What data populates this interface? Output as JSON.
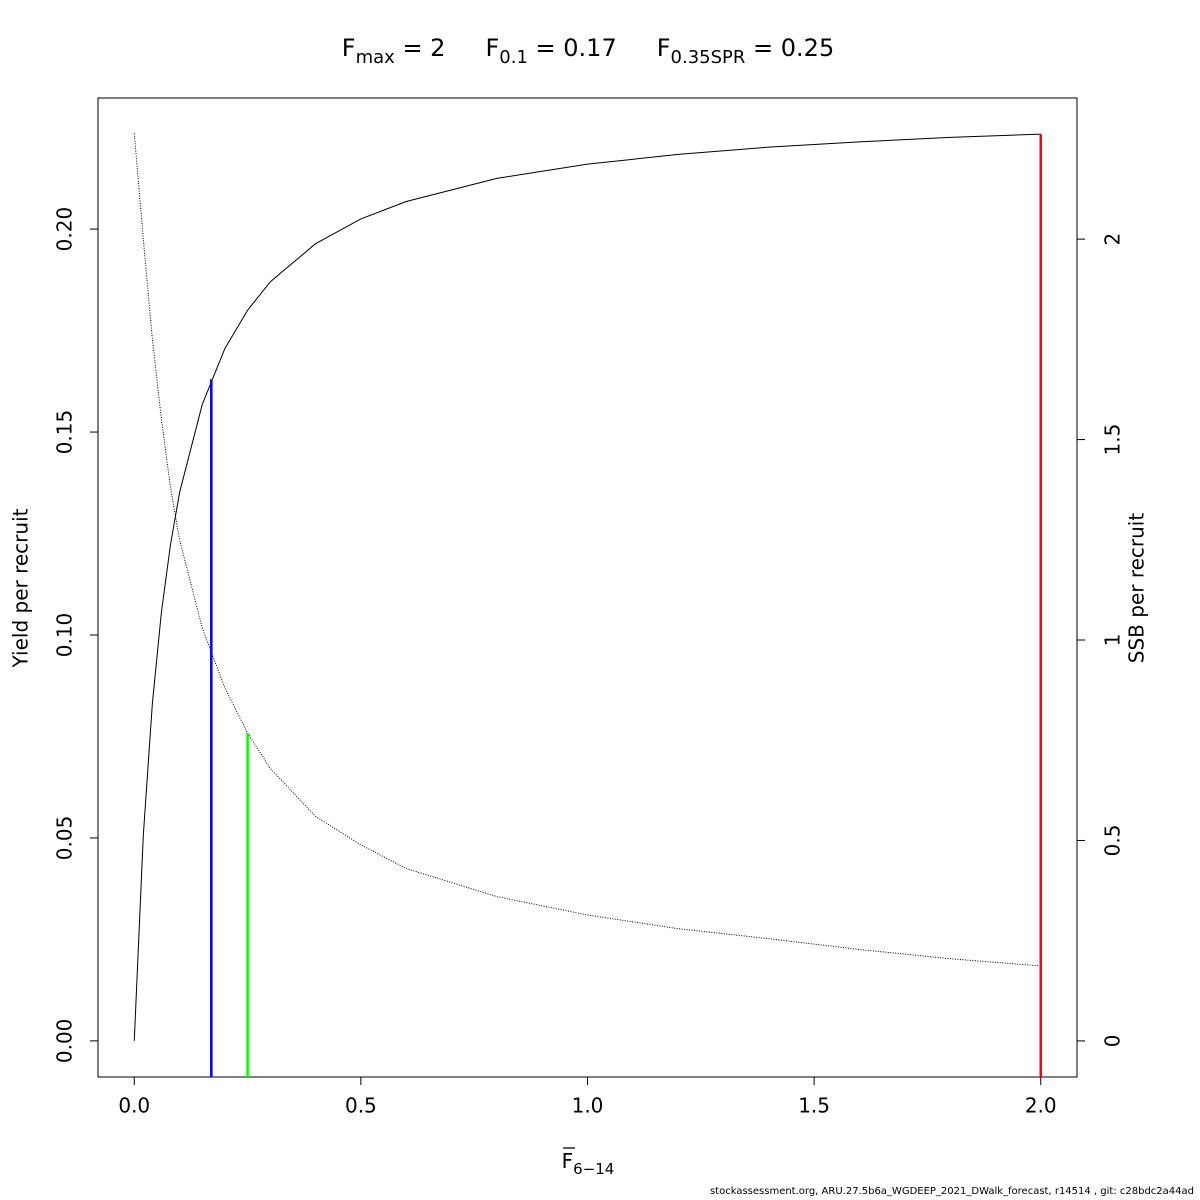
{
  "chart_data": {
    "type": "line",
    "title_parts": [
      {
        "base": "F",
        "sub": "max",
        "rest": " = 2"
      },
      {
        "base": "F",
        "sub": "0.1",
        "rest": " = 0.17"
      },
      {
        "base": "F",
        "sub": "0.35SPR",
        "rest": " = 0.25"
      }
    ],
    "xlabel": {
      "base": "F",
      "sub": "6−14"
    },
    "ylabel": "Yield per recruit",
    "y2label": "SSB per recruit",
    "footer": "stockassessment.org, ARU.27.5b6a_WGDEEP_2021_DWalk_forecast, r14514 , git: c28bdc2a44ad",
    "x": [
      0,
      0.02,
      0.04,
      0.06,
      0.08,
      0.1,
      0.15,
      0.2,
      0.25,
      0.3,
      0.4,
      0.5,
      0.6,
      0.8,
      1.0,
      1.2,
      1.4,
      1.6,
      1.8,
      2.0
    ],
    "series": [
      {
        "name": "Yield per recruit",
        "color": "#000000",
        "dash": "none",
        "axis": "y",
        "values": [
          0,
          0.0507,
          0.0832,
          0.1057,
          0.1223,
          0.1351,
          0.1568,
          0.1706,
          0.18,
          0.187,
          0.1964,
          0.2025,
          0.2068,
          0.2125,
          0.216,
          0.2184,
          0.2202,
          0.2215,
          0.2226,
          0.2234
        ]
      },
      {
        "name": "SSB per recruit",
        "color": "#000000",
        "dash": "1 1.5",
        "axis": "y2",
        "values": [
          2.264,
          2.0,
          1.75,
          1.55,
          1.38,
          1.25,
          1.03,
          0.88,
          0.768,
          0.68,
          0.56,
          0.489,
          0.43,
          0.36,
          0.314,
          0.28,
          0.255,
          0.228,
          0.205,
          0.187
        ]
      }
    ],
    "reference_lines": [
      {
        "x": 0.17,
        "top": 0.163,
        "axis": "y",
        "color": "#0000ff"
      },
      {
        "x": 0.25,
        "top": 0.768,
        "axis": "y2",
        "color": "#00ff00"
      },
      {
        "x": 2,
        "top": 0.2234,
        "axis": "y",
        "color": "#ff0000"
      }
    ],
    "xlim": [
      -0.08,
      2.08
    ],
    "ylim": [
      -0.0089,
      0.2323
    ],
    "y2lim": [
      -0.09,
      2.352
    ],
    "xticks": [
      {
        "value": 0,
        "label": "0.0"
      },
      0.5,
      {
        "value": 1,
        "label": "1.0"
      },
      1.5,
      {
        "value": 2,
        "label": "2.0"
      }
    ],
    "yticks": [
      {
        "value": 0,
        "label": "0.00"
      },
      0.05,
      {
        "value": 0.1,
        "label": "0.10"
      },
      0.15,
      {
        "value": 0.2,
        "label": "0.20"
      }
    ],
    "y2ticks": [
      0,
      0.5,
      1,
      1.5,
      2
    ]
  }
}
